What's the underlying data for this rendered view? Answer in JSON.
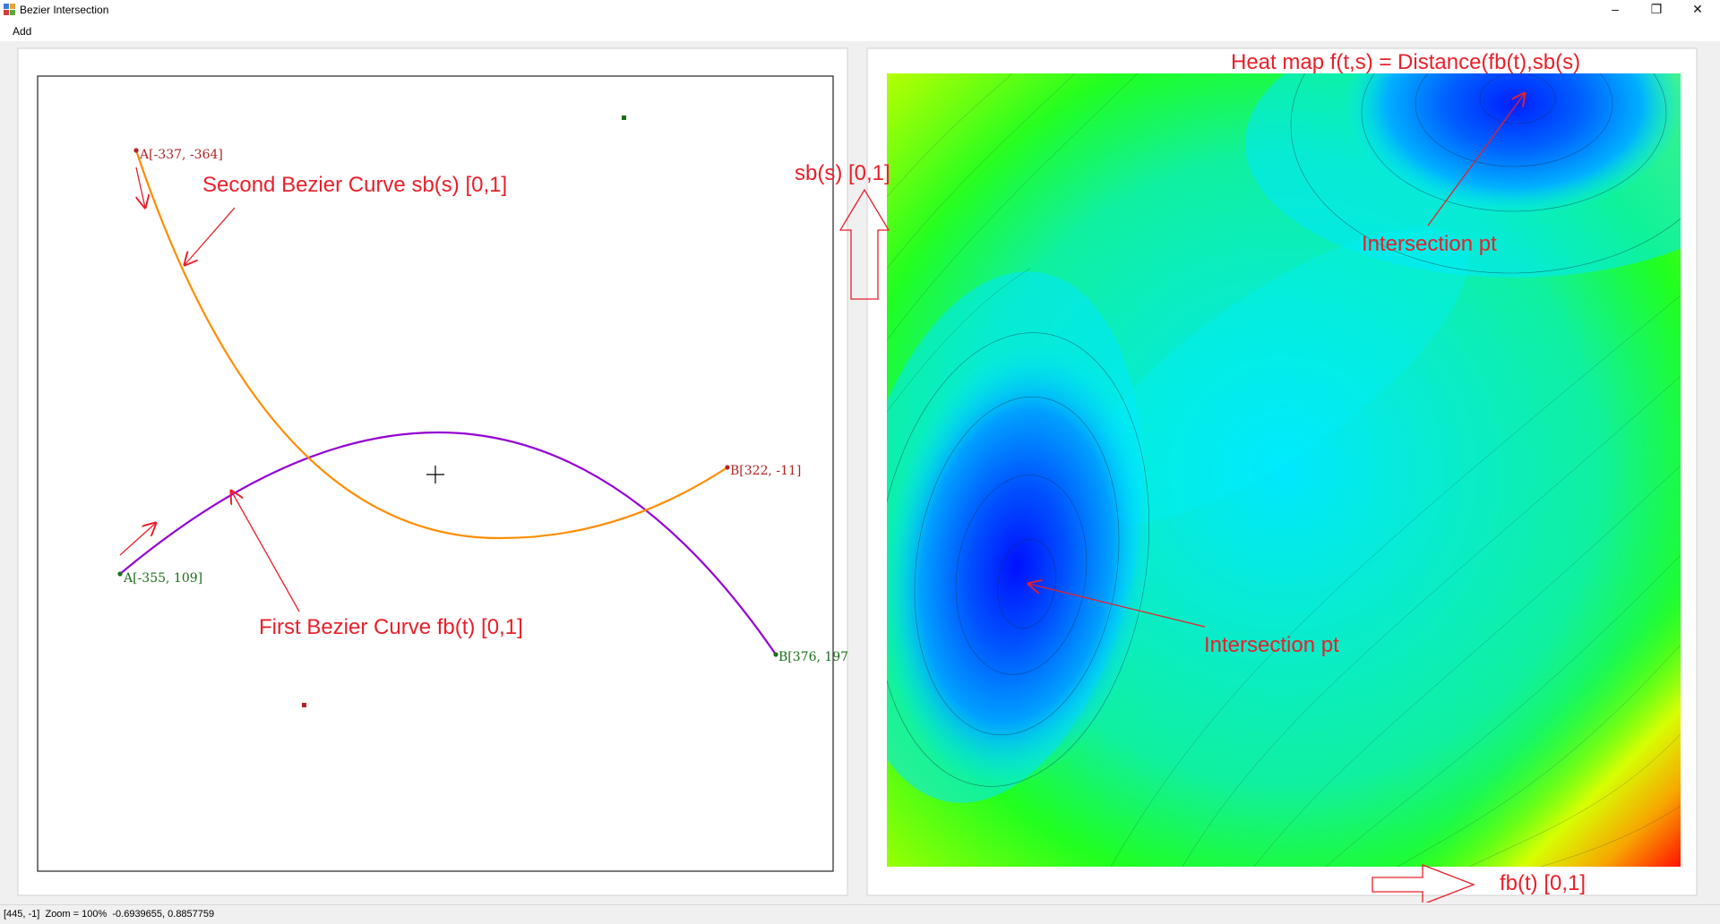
{
  "window": {
    "title": "Bezier Intersection",
    "minimize": "–",
    "maximize": "❐",
    "close": "✕"
  },
  "menu": {
    "items": [
      "Add"
    ]
  },
  "left_panel": {
    "first_curve_label": "First Bezier Curve  fb(t) [0,1]",
    "second_curve_label": "Second Bezier Curve  sb(s) [0,1]",
    "points": {
      "first_a": "A[-355, 109]",
      "first_b": "B[376, 197",
      "second_a": "A[-337, -364]",
      "second_b": "B[322, -11]"
    },
    "colors": {
      "first_curve": "#9400d3",
      "second_curve": "#ff8c00",
      "first_points": "#1a6e1a",
      "second_points": "#b22222",
      "annotation": "#e8202a"
    }
  },
  "right_panel": {
    "title": "Heat map f(t,s) = Distance(fb(t),sb(s)",
    "intersection_label_1": "Intersection pt",
    "intersection_label_2": "Intersection pt",
    "x_axis_label": "fb(t) [0,1]",
    "y_axis_label": "sb(s) [0,1]"
  },
  "status": {
    "text": "[445, -1]  Zoom = 100%  -0.6939655, 0.8857759"
  }
}
